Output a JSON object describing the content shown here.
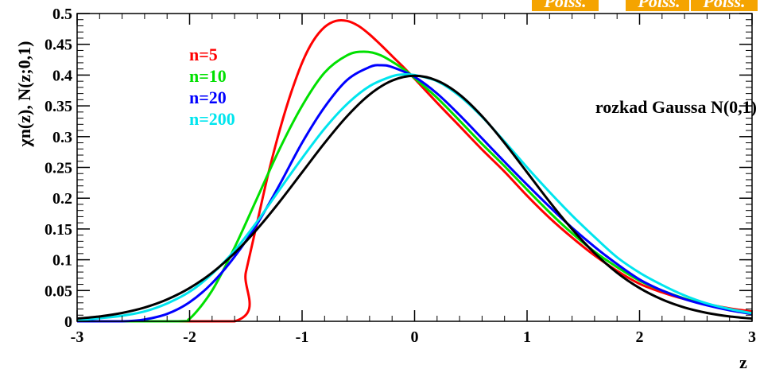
{
  "chart_data": {
    "type": "line",
    "title": "",
    "xlabel": "z",
    "ylabel": "χn(z), N(z;0,1)",
    "xlim": [
      -3,
      3
    ],
    "ylim": [
      0,
      0.5
    ],
    "x_ticks": [
      "-3",
      "-2",
      "-1",
      "0",
      "1",
      "2",
      "3"
    ],
    "y_ticks": [
      "0",
      "0.05",
      "0.1",
      "0.15",
      "0.2",
      "0.25",
      "0.3",
      "0.35",
      "0.4",
      "0.45",
      "0.5"
    ],
    "grid": false,
    "legend_placement": "top-left",
    "annotation": "rozkad Gaussa N(0,1)",
    "top_badges": [
      "Poiss.",
      "Poiss.",
      "Poiss."
    ],
    "series": [
      {
        "name": "n=5",
        "color": "#ff0000",
        "x": [
          -3,
          -1.6,
          -1.5,
          -1.4,
          -1.3,
          -1.2,
          -1.1,
          -1.0,
          -0.9,
          -0.8,
          -0.7,
          -0.6,
          -0.5,
          -0.4,
          -0.3,
          -0.2,
          -0.1,
          0.0,
          0.2,
          0.4,
          0.6,
          0.8,
          1.0,
          1.2,
          1.4,
          1.6,
          1.8,
          2.0,
          2.2,
          2.4,
          2.6,
          2.8,
          3.0
        ],
        "y": [
          0,
          0,
          0.08,
          0.16,
          0.24,
          0.31,
          0.37,
          0.42,
          0.456,
          0.478,
          0.488,
          0.488,
          0.48,
          0.466,
          0.449,
          0.431,
          0.413,
          0.394,
          0.355,
          0.317,
          0.279,
          0.243,
          0.204,
          0.168,
          0.136,
          0.107,
          0.082,
          0.061,
          0.047,
          0.036,
          0.028,
          0.021,
          0.016
        ]
      },
      {
        "name": "n=10",
        "color": "#00e000",
        "x": [
          -3,
          -2.1,
          -2.0,
          -1.8,
          -1.6,
          -1.4,
          -1.2,
          -1.0,
          -0.8,
          -0.6,
          -0.45,
          -0.3,
          -0.1,
          0.0,
          0.2,
          0.4,
          0.6,
          0.8,
          1.0,
          1.2,
          1.4,
          1.6,
          1.8,
          2.0,
          2.2,
          2.4,
          2.6,
          2.8,
          3.0
        ],
        "y": [
          0,
          0,
          0.004,
          0.05,
          0.12,
          0.2,
          0.28,
          0.35,
          0.404,
          0.432,
          0.438,
          0.432,
          0.41,
          0.395,
          0.363,
          0.326,
          0.288,
          0.252,
          0.214,
          0.177,
          0.143,
          0.113,
          0.088,
          0.066,
          0.05,
          0.037,
          0.027,
          0.019,
          0.013
        ]
      },
      {
        "name": "n=20",
        "color": "#0000ff",
        "x": [
          -3,
          -2.6,
          -2.4,
          -2.2,
          -2.0,
          -1.8,
          -1.6,
          -1.4,
          -1.2,
          -1.0,
          -0.8,
          -0.6,
          -0.4,
          -0.3,
          -0.2,
          0.0,
          0.2,
          0.4,
          0.6,
          0.8,
          1.0,
          1.2,
          1.4,
          1.6,
          1.8,
          2.0,
          2.2,
          2.4,
          2.6,
          2.8,
          3.0
        ],
        "y": [
          0,
          0,
          0.003,
          0.012,
          0.031,
          0.062,
          0.105,
          0.158,
          0.222,
          0.29,
          0.348,
          0.392,
          0.413,
          0.416,
          0.413,
          0.397,
          0.37,
          0.335,
          0.297,
          0.259,
          0.222,
          0.186,
          0.152,
          0.121,
          0.093,
          0.068,
          0.05,
          0.036,
          0.026,
          0.018,
          0.012
        ]
      },
      {
        "name": "n=200",
        "color": "#00e5ee",
        "x": [
          -3,
          -2.8,
          -2.6,
          -2.4,
          -2.2,
          -2.0,
          -1.8,
          -1.6,
          -1.4,
          -1.2,
          -1.0,
          -0.8,
          -0.6,
          -0.4,
          -0.2,
          -0.1,
          0.0,
          0.2,
          0.4,
          0.6,
          0.8,
          1.0,
          1.2,
          1.4,
          1.6,
          1.8,
          2.0,
          2.2,
          2.4,
          2.6,
          2.8,
          3.0
        ],
        "y": [
          0.002,
          0.005,
          0.009,
          0.016,
          0.029,
          0.048,
          0.077,
          0.115,
          0.162,
          0.214,
          0.265,
          0.313,
          0.353,
          0.382,
          0.398,
          0.401,
          0.4,
          0.39,
          0.366,
          0.332,
          0.292,
          0.25,
          0.21,
          0.172,
          0.137,
          0.104,
          0.079,
          0.059,
          0.042,
          0.029,
          0.02,
          0.013
        ]
      },
      {
        "name": "",
        "color": "#000000",
        "x": [
          -3,
          -2.8,
          -2.6,
          -2.4,
          -2.2,
          -2.0,
          -1.8,
          -1.6,
          -1.4,
          -1.2,
          -1.0,
          -0.8,
          -0.6,
          -0.4,
          -0.2,
          0.0,
          0.2,
          0.4,
          0.6,
          0.8,
          1.0,
          1.2,
          1.4,
          1.6,
          1.8,
          2.0,
          2.2,
          2.4,
          2.6,
          2.8,
          3.0
        ],
        "y": [
          0.0044,
          0.0079,
          0.0136,
          0.0224,
          0.0355,
          0.054,
          0.079,
          0.1109,
          0.1497,
          0.1942,
          0.242,
          0.2897,
          0.3332,
          0.3683,
          0.391,
          0.3989,
          0.391,
          0.3683,
          0.3332,
          0.2897,
          0.242,
          0.1942,
          0.1497,
          0.1109,
          0.079,
          0.054,
          0.0355,
          0.0224,
          0.0136,
          0.0079,
          0.0044
        ]
      }
    ]
  }
}
